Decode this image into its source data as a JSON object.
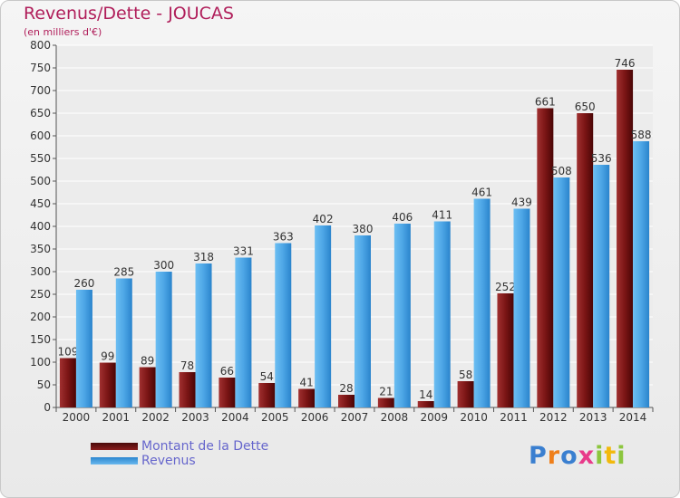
{
  "chart_data": {
    "type": "bar",
    "title": "Revenus/Dette - JOUCAS",
    "subtitle": "(en milliers d'€)",
    "categories": [
      "2000",
      "2001",
      "2002",
      "2003",
      "2004",
      "2005",
      "2006",
      "2007",
      "2008",
      "2009",
      "2010",
      "2011",
      "2012",
      "2013",
      "2014"
    ],
    "series": [
      {
        "name": "Montant de la Dette",
        "color": "#7b1515",
        "values": [
          109,
          99,
          89,
          78,
          66,
          54,
          41,
          28,
          21,
          14,
          58,
          252,
          661,
          650,
          746
        ]
      },
      {
        "name": "Revenus",
        "color": "#4da6e6",
        "values": [
          260,
          285,
          300,
          318,
          331,
          363,
          402,
          380,
          406,
          411,
          461,
          439,
          508,
          536,
          588
        ]
      }
    ],
    "ylim": [
      0,
      800
    ],
    "yticks": [
      0,
      50,
      100,
      150,
      200,
      250,
      300,
      350,
      400,
      450,
      500,
      550,
      600,
      650,
      700,
      750,
      800
    ],
    "grid": true,
    "legend_position": "bottom-left"
  },
  "logo": {
    "letters": [
      "P",
      "r",
      "o",
      "x",
      "i",
      "t",
      "i"
    ]
  }
}
